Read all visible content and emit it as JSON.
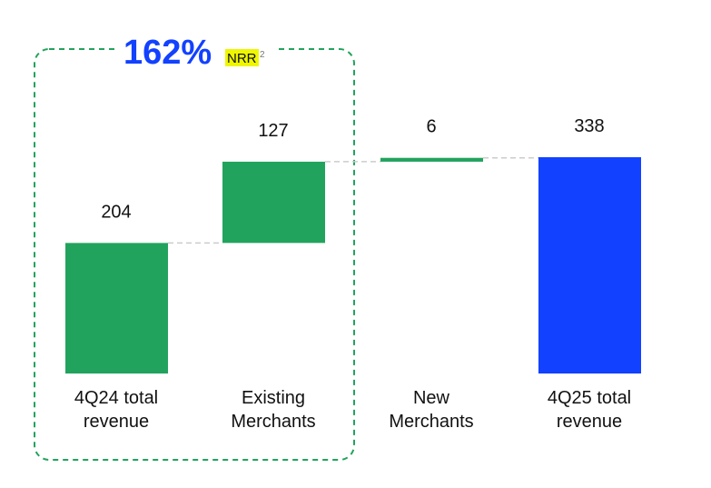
{
  "chart_data": {
    "type": "bar",
    "subtype": "waterfall",
    "title": "",
    "xlabel": "",
    "ylabel": "",
    "ylim": [
      0,
      338
    ],
    "grid": false,
    "legend": "none",
    "categories": [
      [
        "4Q24 total",
        "revenue"
      ],
      [
        "Existing",
        "Merchants"
      ],
      [
        "New",
        "Merchants"
      ],
      [
        "4Q25 total",
        "revenue"
      ]
    ],
    "values": [
      204,
      127,
      6,
      338
    ],
    "bar_kinds": [
      "total",
      "increment",
      "increment",
      "total"
    ],
    "data_labels": [
      "204",
      "127",
      "6",
      "338"
    ],
    "colors": {
      "total_start": "#22a35d",
      "increment": "#22a35d",
      "total_end": "#1241ff",
      "connector": "#cccccc",
      "bracket": "#22a35d",
      "callout_value": "#1241ff",
      "callout_highlight": "#eef700",
      "text": "#111111"
    },
    "annotation": {
      "value": "162%",
      "label": "NRR",
      "superscript": "2"
    }
  }
}
